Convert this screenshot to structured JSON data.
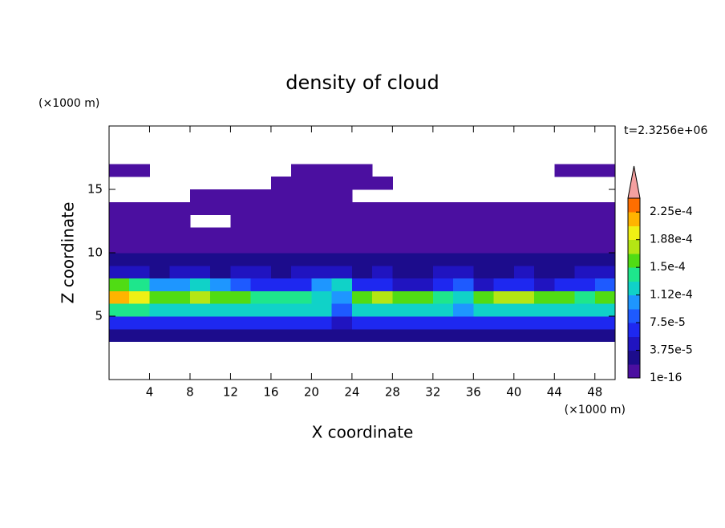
{
  "chart_data": {
    "type": "contour",
    "title": "density of cloud",
    "x_label": "X coordinate",
    "y_label": "Z coordinate",
    "x_unit": "(×1000 m)",
    "y_unit": "(×1000 m)",
    "annotation": "t=2.3256e+06",
    "xlim": [
      0,
      50
    ],
    "ylim": [
      0,
      20
    ],
    "xticks": [
      4,
      8,
      12,
      16,
      20,
      24,
      28,
      32,
      36,
      40,
      44,
      48
    ],
    "yticks": [
      5,
      10,
      15
    ],
    "x": [
      1,
      3,
      5,
      7,
      9,
      11,
      13,
      15,
      17,
      19,
      21,
      23,
      25,
      27,
      29,
      31,
      33,
      35,
      37,
      39,
      41,
      43,
      45,
      47,
      49
    ],
    "y": [
      0.5,
      1.5,
      2.5,
      3.5,
      4.5,
      5.5,
      6.5,
      7.5,
      8.5,
      9.5,
      10.5,
      11.5,
      12.5,
      13.5,
      14.5,
      15.5,
      16.5,
      17.5,
      18.5,
      19.5
    ],
    "z": [
      [
        null,
        null,
        null,
        null,
        null,
        null,
        null,
        null,
        null,
        null,
        null,
        null,
        null,
        null,
        null,
        null,
        null,
        null,
        null,
        null,
        null,
        null,
        null,
        null,
        null
      ],
      [
        null,
        null,
        null,
        null,
        null,
        null,
        null,
        null,
        null,
        null,
        null,
        null,
        null,
        null,
        null,
        null,
        null,
        null,
        null,
        null,
        null,
        null,
        null,
        null,
        null
      ],
      [
        null,
        null,
        null,
        null,
        null,
        null,
        null,
        null,
        null,
        null,
        null,
        null,
        null,
        null,
        null,
        null,
        null,
        null,
        null,
        null,
        null,
        null,
        null,
        null,
        null
      ],
      [
        2.5e-05,
        2.5e-05,
        2.5e-05,
        2.5e-05,
        2.5e-05,
        2.5e-05,
        2.5e-05,
        2.5e-05,
        2.5e-05,
        2.5e-05,
        2.5e-05,
        2.5e-05,
        2.5e-05,
        2.5e-05,
        2.5e-05,
        2.5e-05,
        2.5e-05,
        2.5e-05,
        2.5e-05,
        2.5e-05,
        2.5e-05,
        2.5e-05,
        2.5e-05,
        2.5e-05,
        2.5e-05
      ],
      [
        6.5e-05,
        6.5e-05,
        6.5e-05,
        6.5e-05,
        6.5e-05,
        6.5e-05,
        6.5e-05,
        6.5e-05,
        6.5e-05,
        6.5e-05,
        6.5e-05,
        4.5e-05,
        6.5e-05,
        6.5e-05,
        6.5e-05,
        6.5e-05,
        6.5e-05,
        6.5e-05,
        6.5e-05,
        6.5e-05,
        6.5e-05,
        6.5e-05,
        6.5e-05,
        6.5e-05,
        6.5e-05
      ],
      [
        0.00014,
        0.00014,
        0.00012,
        0.00012,
        0.00012,
        0.00012,
        0.00012,
        0.00012,
        0.00012,
        0.00012,
        0.00012,
        8.5e-05,
        0.00012,
        0.00012,
        0.00012,
        0.00012,
        0.00012,
        0.0001,
        0.00012,
        0.00012,
        0.00012,
        0.00012,
        0.00012,
        0.00012,
        0.00012
      ],
      [
        0.000215,
        0.000195,
        0.00016,
        0.00016,
        0.00018,
        0.00016,
        0.00016,
        0.00014,
        0.00014,
        0.00014,
        0.00012,
        0.0001,
        0.00016,
        0.00018,
        0.00016,
        0.00016,
        0.00014,
        0.00012,
        0.00016,
        0.00018,
        0.00018,
        0.00016,
        0.00016,
        0.00014,
        0.00016
      ],
      [
        0.00016,
        0.00014,
        0.0001,
        0.0001,
        0.00012,
        0.0001,
        8.5e-05,
        6.5e-05,
        6.5e-05,
        6.5e-05,
        0.0001,
        0.00012,
        6.5e-05,
        6.5e-05,
        4.5e-05,
        4.5e-05,
        6.5e-05,
        8.5e-05,
        4.5e-05,
        6.5e-05,
        6.5e-05,
        4.5e-05,
        6.5e-05,
        6.5e-05,
        8.5e-05
      ],
      [
        4.5e-05,
        4.5e-05,
        2.5e-05,
        4.5e-05,
        4.5e-05,
        2.5e-05,
        4.5e-05,
        4.5e-05,
        2.5e-05,
        4.5e-05,
        4.5e-05,
        4.5e-05,
        2.5e-05,
        4.5e-05,
        2.5e-05,
        2.5e-05,
        4.5e-05,
        4.5e-05,
        2.5e-05,
        2.5e-05,
        4.5e-05,
        2.5e-05,
        2.5e-05,
        4.5e-05,
        4.5e-05
      ],
      [
        2.5e-05,
        2.5e-05,
        2.5e-05,
        2.5e-05,
        2.5e-05,
        2.5e-05,
        2.5e-05,
        2.5e-05,
        2.5e-05,
        2.5e-05,
        2.5e-05,
        2.5e-05,
        2.5e-05,
        2.5e-05,
        2.5e-05,
        2.5e-05,
        2.5e-05,
        2.5e-05,
        2.5e-05,
        2.5e-05,
        2.5e-05,
        2.5e-05,
        2.5e-05,
        2.5e-05,
        2.5e-05
      ],
      [
        1e-05,
        1e-05,
        1e-05,
        1e-05,
        1e-05,
        1e-05,
        1e-05,
        1e-05,
        1e-05,
        1e-05,
        1e-05,
        1e-05,
        1e-05,
        1e-05,
        1e-05,
        1e-05,
        1e-05,
        1e-05,
        1e-05,
        1e-05,
        1e-05,
        1e-05,
        1e-05,
        1e-05,
        1e-05
      ],
      [
        1e-05,
        1e-05,
        1e-05,
        1e-05,
        1e-05,
        1e-05,
        1e-05,
        1e-05,
        1e-05,
        1e-05,
        1e-05,
        1e-05,
        1e-05,
        1e-05,
        1e-05,
        1e-05,
        1e-05,
        1e-05,
        1e-05,
        1e-05,
        1e-05,
        1e-05,
        1e-05,
        1e-05,
        1e-05
      ],
      [
        1e-05,
        1e-05,
        1e-05,
        1e-05,
        null,
        null,
        1e-05,
        1e-05,
        1e-05,
        1e-05,
        1e-05,
        1e-05,
        1e-05,
        1e-05,
        1e-05,
        1e-05,
        1e-05,
        1e-05,
        1e-05,
        1e-05,
        1e-05,
        1e-05,
        1e-05,
        1e-05,
        1e-05
      ],
      [
        1e-05,
        1e-05,
        1e-05,
        1e-05,
        1e-05,
        1e-05,
        1e-05,
        1e-05,
        1e-05,
        1e-05,
        1e-05,
        1e-05,
        1e-05,
        1e-05,
        1e-05,
        1e-05,
        1e-05,
        1e-05,
        1e-05,
        1e-05,
        1e-05,
        1e-05,
        1e-05,
        1e-05,
        1e-05
      ],
      [
        null,
        null,
        null,
        null,
        1e-05,
        1e-05,
        1e-05,
        1e-05,
        1e-05,
        1e-05,
        1e-05,
        1e-05,
        null,
        null,
        null,
        null,
        null,
        null,
        null,
        null,
        null,
        null,
        null,
        null,
        null
      ],
      [
        null,
        null,
        null,
        null,
        null,
        null,
        null,
        null,
        1e-05,
        1e-05,
        1e-05,
        1e-05,
        1e-05,
        1e-05,
        null,
        null,
        null,
        null,
        null,
        null,
        null,
        null,
        null,
        null,
        null
      ],
      [
        1e-05,
        1e-05,
        null,
        null,
        null,
        null,
        null,
        null,
        null,
        1e-05,
        1e-05,
        1e-05,
        1e-05,
        null,
        null,
        null,
        null,
        null,
        null,
        null,
        null,
        null,
        1e-05,
        1e-05,
        1e-05
      ],
      [
        null,
        null,
        null,
        null,
        null,
        null,
        null,
        null,
        null,
        null,
        null,
        null,
        null,
        null,
        null,
        null,
        null,
        null,
        null,
        null,
        null,
        null,
        null,
        null,
        null
      ],
      [
        null,
        null,
        null,
        null,
        null,
        null,
        null,
        null,
        null,
        null,
        null,
        null,
        null,
        null,
        null,
        null,
        null,
        null,
        null,
        null,
        null,
        null,
        null,
        null,
        null
      ],
      [
        null,
        null,
        null,
        null,
        null,
        null,
        null,
        null,
        null,
        null,
        null,
        null,
        null,
        null,
        null,
        null,
        null,
        null,
        null,
        null,
        null,
        null,
        null,
        null,
        null
      ]
    ],
    "levels": [
      1e-16,
      1.875e-05,
      3.75e-05,
      5.625e-05,
      7.5e-05,
      9.375e-05,
      0.0001125,
      0.00013125,
      0.00015,
      0.00016875,
      0.0001875,
      0.00020625,
      0.000225,
      0.00024375
    ],
    "colors": [
      "#4b0fa0",
      "#1c0c8c",
      "#2014c0",
      "#1e28f0",
      "#1e5aff",
      "#1e96ff",
      "#10d2c8",
      "#1ee68c",
      "#50dc14",
      "#b4e614",
      "#f0f014",
      "#ffb400",
      "#ff6e00"
    ],
    "extend_color": "#f4a0a0",
    "colorbar_ticks": [
      1e-16,
      {
        "value": 3.75e-05,
        "label": "3.75e-5"
      },
      {
        "value": 7.5e-05,
        "label": "7.5e-5"
      },
      {
        "value": 0.0001125,
        "label": "1.12e-4"
      },
      {
        "value": 0.00015,
        "label": "1.5e-4"
      },
      {
        "value": 0.0001875,
        "label": "1.88e-4"
      },
      {
        "value": 0.000225,
        "label": "2.25e-4"
      }
    ]
  }
}
